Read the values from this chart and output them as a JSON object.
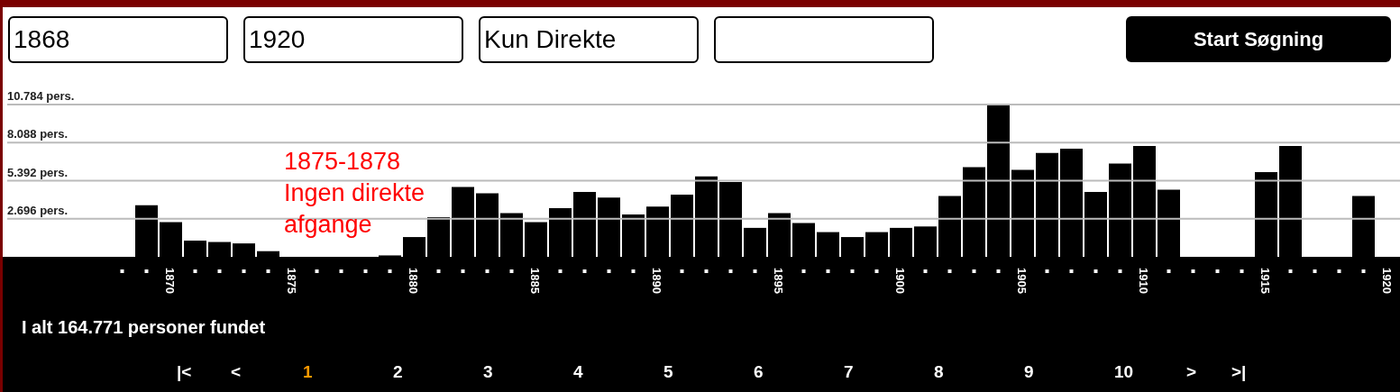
{
  "chart_data": {
    "type": "bar",
    "categories": [
      null,
      null,
      "1870",
      null,
      null,
      null,
      null,
      "1875",
      null,
      null,
      null,
      null,
      "1880",
      null,
      null,
      null,
      null,
      "1885",
      null,
      null,
      null,
      null,
      "1890",
      null,
      null,
      null,
      null,
      "1895",
      null,
      null,
      null,
      null,
      "1900",
      null,
      null,
      null,
      null,
      "1905",
      null,
      null,
      null,
      null,
      "1910",
      null,
      null,
      null,
      null,
      "1915",
      null,
      null,
      null,
      null,
      "1920"
    ],
    "values": [
      0,
      3650,
      2450,
      1150,
      1050,
      950,
      400,
      0,
      0,
      0,
      0,
      100,
      1400,
      2800,
      4950,
      4500,
      3100,
      2450,
      3450,
      4600,
      4200,
      3000,
      3550,
      4400,
      5700,
      5300,
      2050,
      3100,
      2400,
      1750,
      1400,
      1750,
      2050,
      2150,
      4300,
      6350,
      10784,
      6150,
      7350,
      7650,
      4600,
      6600,
      7850,
      4750,
      0,
      0,
      0,
      6000,
      7850,
      0,
      0,
      4300,
      0
    ],
    "color": "#000000",
    "ylim": [
      0,
      10784
    ],
    "yticks": [
      {
        "value": 2696,
        "label": "2.696 pers."
      },
      {
        "value": 5392,
        "label": "5.392 pers."
      },
      {
        "value": 8088,
        "label": "8.088 pers."
      },
      {
        "value": 10784,
        "label": "10.784 pers."
      }
    ],
    "grid": "y",
    "annotations": [
      "1875-1878\nIngen direkte\nafgange",
      "I alt 164.771 personer fundet",
      "1868",
      "1920",
      "Kun Direkte",
      "Start Søgning",
      "|<",
      "<",
      "1",
      "2",
      "3",
      "4",
      "5",
      "6",
      "7",
      "8",
      "9",
      "10",
      ">",
      ">|"
    ]
  }
}
